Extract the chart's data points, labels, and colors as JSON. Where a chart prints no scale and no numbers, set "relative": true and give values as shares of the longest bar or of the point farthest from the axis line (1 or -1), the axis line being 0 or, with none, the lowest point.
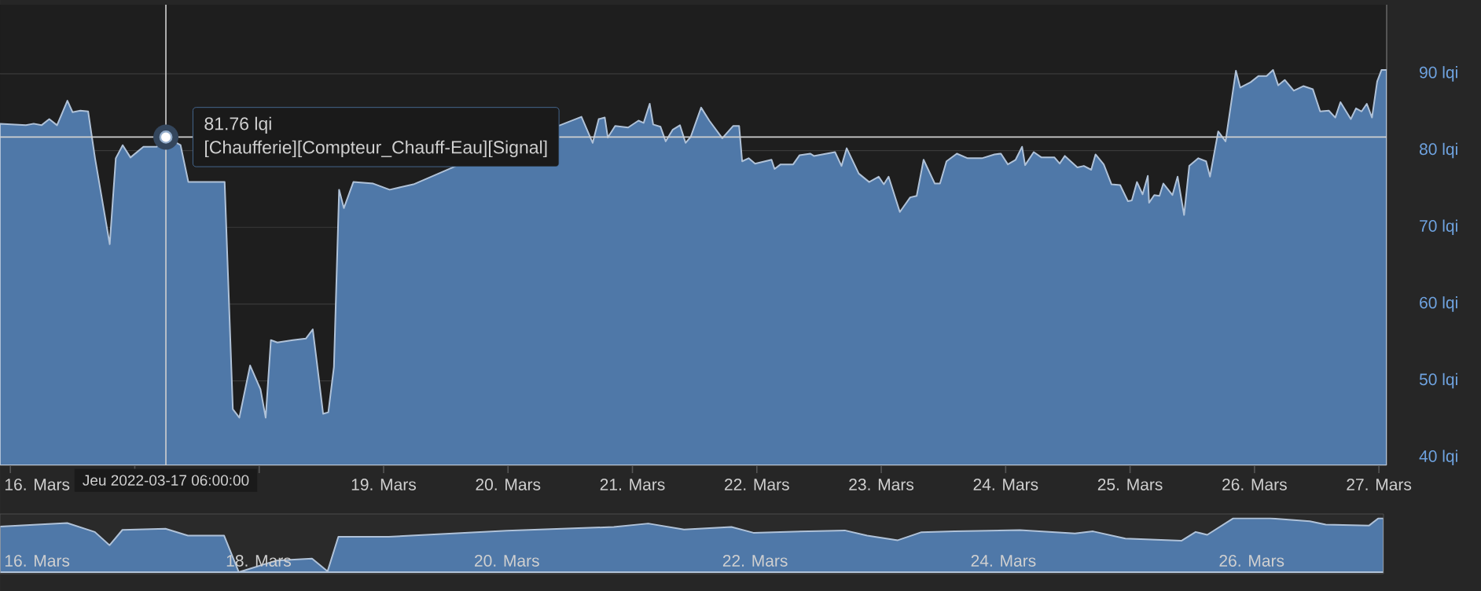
{
  "chart_data": [
    {
      "type": "area",
      "x": [
        "2022-03-15T22:00",
        "2022-03-16T03:00",
        "2022-03-16T04:30",
        "2022-03-16T06:00",
        "2022-03-16T07:30",
        "2022-03-16T09:00",
        "2022-03-16T11:00",
        "2022-03-16T12:00",
        "2022-03-16T13:30",
        "2022-03-16T15:00",
        "2022-03-16T16:20",
        "2022-03-16T19:10",
        "2022-03-16T20:20",
        "2022-03-16T21:40",
        "2022-03-16T23:10",
        "2022-03-17T01:40",
        "2022-03-17T04:15",
        "2022-03-17T06:00",
        "2022-03-17T08:50",
        "2022-03-17T10:20",
        "2022-03-17T17:20",
        "2022-03-17T18:55",
        "2022-03-17T20:10",
        "2022-03-17T22:15",
        "2022-03-18T00:15",
        "2022-03-18T01:15",
        "2022-03-18T02:15",
        "2022-03-18T03:30",
        "2022-03-18T06:30",
        "2022-03-18T09:00",
        "2022-03-18T10:20",
        "2022-03-18T11:00",
        "2022-03-18T12:20",
        "2022-03-18T13:20",
        "2022-03-18T14:25",
        "2022-03-18T15:25",
        "2022-03-18T16:20",
        "2022-03-18T18:10",
        "2022-03-18T22:00",
        "2022-03-19T01:10",
        "2022-03-19T05:45",
        "2022-03-19T14:00",
        "2022-03-20T06:00",
        "2022-03-20T14:10",
        "2022-03-20T16:20",
        "2022-03-20T17:30",
        "2022-03-20T18:40",
        "2022-03-20T19:15",
        "2022-03-20T20:40",
        "2022-03-20T23:10",
        "2022-03-21T01:10",
        "2022-03-21T02:10",
        "2022-03-21T03:20",
        "2022-03-21T04:00",
        "2022-03-21T05:25",
        "2022-03-21T06:25",
        "2022-03-21T07:45",
        "2022-03-21T09:10",
        "2022-03-21T10:15",
        "2022-03-21T11:15",
        "2022-03-21T13:15",
        "2022-03-21T14:50",
        "2022-03-21T17:20",
        "2022-03-21T19:25",
        "2022-03-21T20:35",
        "2022-03-21T21:10",
        "2022-03-21T22:25",
        "2022-03-21T23:40",
        "2022-03-22T02:50",
        "2022-03-22T03:25",
        "2022-03-22T04:35",
        "2022-03-22T07:00",
        "2022-03-22T08:15",
        "2022-03-22T10:20",
        "2022-03-22T11:00",
        "2022-03-22T15:05",
        "2022-03-22T16:20",
        "2022-03-22T17:20",
        "2022-03-22T19:40",
        "2022-03-22T21:40",
        "2022-03-22T23:30",
        "2022-03-23T00:30",
        "2022-03-23T01:25",
        "2022-03-23T03:35",
        "2022-03-23T05:35",
        "2022-03-23T06:50",
        "2022-03-23T08:10",
        "2022-03-23T10:20",
        "2022-03-23T11:20",
        "2022-03-23T12:35",
        "2022-03-23T14:35",
        "2022-03-23T16:40",
        "2022-03-23T19:25",
        "2022-03-23T21:50",
        "2022-03-23T23:05",
        "2022-03-24T00:25",
        "2022-03-24T01:55",
        "2022-03-24T03:10",
        "2022-03-24T03:45",
        "2022-03-24T05:25",
        "2022-03-24T06:55",
        "2022-03-24T09:25",
        "2022-03-24T10:25",
        "2022-03-24T11:25",
        "2022-03-24T13:50",
        "2022-03-24T15:05",
        "2022-03-24T16:30",
        "2022-03-24T17:20",
        "2022-03-24T18:55",
        "2022-03-24T20:25",
        "2022-03-24T22:05",
        "2022-03-24T23:35",
        "2022-03-25T00:20",
        "2022-03-25T01:20",
        "2022-03-25T02:25",
        "2022-03-25T03:25",
        "2022-03-25T03:40",
        "2022-03-25T04:40",
        "2022-03-25T05:40",
        "2022-03-25T06:25",
        "2022-03-25T08:10",
        "2022-03-25T09:10",
        "2022-03-25T10:25",
        "2022-03-25T11:25",
        "2022-03-25T13:10",
        "2022-03-25T14:40",
        "2022-03-25T15:25",
        "2022-03-25T17:00",
        "2022-03-25T18:25",
        "2022-03-25T20:25",
        "2022-03-25T21:15",
        "2022-03-25T23:15",
        "2022-03-26T00:45",
        "2022-03-26T02:20",
        "2022-03-26T03:35",
        "2022-03-26T04:35",
        "2022-03-26T05:50",
        "2022-03-26T07:35",
        "2022-03-26T09:25",
        "2022-03-26T11:15",
        "2022-03-26T12:40",
        "2022-03-26T14:20",
        "2022-03-26T15:35",
        "2022-03-26T16:35",
        "2022-03-26T18:35",
        "2022-03-26T19:35",
        "2022-03-26T20:40",
        "2022-03-26T21:40",
        "2022-03-26T22:40",
        "2022-03-26T23:40",
        "2022-03-27T00:30",
        "2022-03-27T01:30"
      ],
      "series": [
        {
          "color": "#4f78a8",
          "values": [
            83.5,
            83.3,
            83.5,
            83.3,
            84.1,
            83.3,
            86.5,
            85.0,
            85.2,
            85.1,
            79.0,
            67.8,
            79.0,
            80.7,
            79.1,
            80.5,
            80.5,
            81.76,
            80.7,
            75.9,
            75.9,
            46.3,
            45.2,
            52.0,
            48.9,
            45.2,
            55.3,
            55.0,
            55.3,
            55.5,
            56.7,
            53.1,
            45.7,
            45.9,
            51.8,
            74.9,
            72.5,
            75.9,
            75.7,
            74.9,
            75.6,
            78.0,
            null,
            84.4,
            81.0,
            84.1,
            84.3,
            81.7,
            83.2,
            83.0,
            83.9,
            83.6,
            86.1,
            83.4,
            83.1,
            81.2,
            82.7,
            83.3,
            81.0,
            81.8,
            85.6,
            83.9,
            81.6,
            83.2,
            83.2,
            78.6,
            79.0,
            78.3,
            78.8,
            77.6,
            78.2,
            78.2,
            79.4,
            79.6,
            79.3,
            79.8,
            78.0,
            80.3,
            77.0,
            75.9,
            76.6,
            75.6,
            76.6,
            72.0,
            73.9,
            74.1,
            78.8,
            75.7,
            75.7,
            78.6,
            79.6,
            79.0,
            79.0,
            79.5,
            79.6,
            78.2,
            78.8,
            80.5,
            78.1,
            79.8,
            79.1,
            79.1,
            78.3,
            79.3,
            77.8,
            78.0,
            77.5,
            79.5,
            78.2,
            75.6,
            75.5,
            73.4,
            73.5,
            75.9,
            74.3,
            76.7,
            73.2,
            74.2,
            74.1,
            75.7,
            74.2,
            76.6,
            71.6,
            78.0,
            79.0,
            78.6,
            76.6,
            82.5,
            81.2,
            90.4,
            88.2,
            88.9,
            89.7,
            89.7,
            90.5,
            88.5,
            89.2,
            87.8,
            88.4,
            88.0,
            85.1,
            85.2,
            84.3,
            86.3,
            84.1,
            85.5,
            85.1,
            86.1,
            84.3,
            89.0,
            90.5,
            90.5
          ]
        }
      ],
      "xlim": [
        "2022-03-15T22:00",
        "2022-03-27T01:30"
      ],
      "xticks": [
        {
          "value": "2022-03-16",
          "label": "16. Mars"
        },
        {
          "value": "2022-03-17",
          "label": null
        },
        {
          "value": "2022-03-18",
          "label": null
        },
        {
          "value": "2022-03-19",
          "label": "19. Mars"
        },
        {
          "value": "2022-03-20",
          "label": "20. Mars"
        },
        {
          "value": "2022-03-21",
          "label": "21. Mars"
        },
        {
          "value": "2022-03-22",
          "label": "22. Mars"
        },
        {
          "value": "2022-03-23",
          "label": "23. Mars"
        },
        {
          "value": "2022-03-24",
          "label": "24. Mars"
        },
        {
          "value": "2022-03-25",
          "label": "25. Mars"
        },
        {
          "value": "2022-03-26",
          "label": "26. Mars"
        },
        {
          "value": "2022-03-27",
          "label": "27. Mars"
        }
      ],
      "ylim": [
        39,
        99
      ],
      "yticks": [
        {
          "value": 40,
          "label": "40 lqi"
        },
        {
          "value": 50,
          "label": "50 lqi"
        },
        {
          "value": 60,
          "label": "60 lqi"
        },
        {
          "value": 70,
          "label": "70 lqi"
        },
        {
          "value": 80,
          "label": "80 lqi"
        },
        {
          "value": 90,
          "label": "90 lqi"
        }
      ],
      "grid": "y",
      "ref_lines": [
        {
          "axis": "x",
          "value": "2022-03-17T06:00",
          "label": "Jeu 2022-03-17 06:00:00",
          "color": "#d0d0d0"
        },
        {
          "axis": "y",
          "value": 81.76,
          "color": "#d0d0d0"
        }
      ],
      "annotations": [
        {
          "text": "81.76 lqi",
          "x": "2022-03-17T06:00",
          "y": 81.76
        },
        {
          "text": "[Chaufferie][Compteur_Chauff-Eau][Signal]",
          "x": "2022-03-17T06:00",
          "y": 81.76
        }
      ]
    },
    {
      "type": "area",
      "relative": true,
      "tick_labels": "x",
      "x": [
        "2022-03-15T22:00",
        "2022-03-16T11:00",
        "2022-03-16T16:20",
        "2022-03-16T19:10",
        "2022-03-16T21:40",
        "2022-03-17T06:00",
        "2022-03-17T10:20",
        "2022-03-17T17:20",
        "2022-03-17T20:10",
        "2022-03-18T03:30",
        "2022-03-18T10:20",
        "2022-03-18T13:20",
        "2022-03-18T15:25",
        "2022-03-19T01:10",
        "2022-03-20T00:00",
        "2022-03-20T20:40",
        "2022-03-21T03:20",
        "2022-03-21T10:15",
        "2022-03-21T19:25",
        "2022-03-21T23:40",
        "2022-03-22T10:20",
        "2022-03-22T17:20",
        "2022-03-22T21:40",
        "2022-03-23T03:35",
        "2022-03-23T08:10",
        "2022-03-23T14:35",
        "2022-03-24T03:10",
        "2022-03-24T13:50",
        "2022-03-24T17:20",
        "2022-03-24T23:35",
        "2022-03-25T10:25",
        "2022-03-25T13:10",
        "2022-03-25T15:25",
        "2022-03-25T20:25",
        "2022-03-26T03:35",
        "2022-03-26T11:15",
        "2022-03-26T14:20",
        "2022-03-26T22:40",
        "2022-03-27T00:30",
        "2022-03-27T01:30"
      ],
      "series": [
        {
          "color": "#4f78a8",
          "values": [
            0.848,
            0.912,
            0.746,
            0.499,
            0.784,
            0.807,
            0.678,
            0.678,
            0,
            0.216,
            0.252,
            0.015,
            0.656,
            0.656,
            0.768,
            0.839,
            0.903,
            0.79,
            0.839,
            0.731,
            0.759,
            0.775,
            0.678,
            0.592,
            0.742,
            0.759,
            0.779,
            0.72,
            0.757,
            0.623,
            0.583,
            0.746,
            0.693,
            0.998,
            1,
            0.945,
            0.883,
            0.863,
            1,
            1
          ]
        }
      ],
      "xlim": [
        "2022-03-15T22:00",
        "2022-03-27T01:30"
      ],
      "xticks": [
        {
          "value": "2022-03-16",
          "label": "16. Mars"
        },
        {
          "value": "2022-03-18",
          "label": "18. Mars"
        },
        {
          "value": "2022-03-20",
          "label": "20. Mars"
        },
        {
          "value": "2022-03-22",
          "label": "22. Mars"
        },
        {
          "value": "2022-03-24",
          "label": "24. Mars"
        },
        {
          "value": "2022-03-26",
          "label": "26. Mars"
        }
      ]
    }
  ]
}
